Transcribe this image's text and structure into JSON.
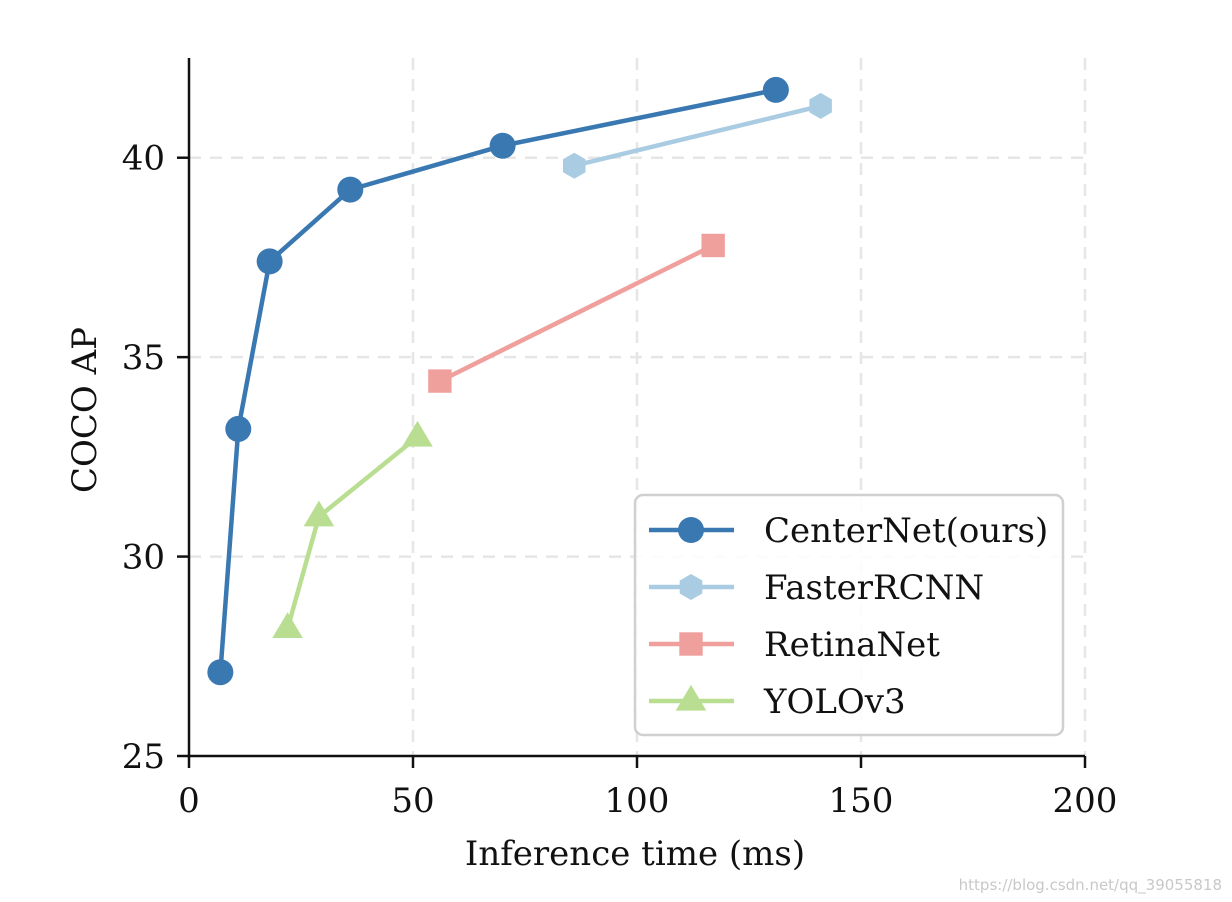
{
  "chart_data": {
    "type": "line",
    "title": "",
    "xlabel": "Inference time (ms)",
    "ylabel": "COCO AP",
    "xlim": [
      0,
      200
    ],
    "ylim": [
      25,
      42.5
    ],
    "xticks": [
      0,
      50,
      100,
      150,
      200
    ],
    "yticks": [
      25,
      30,
      35,
      40
    ],
    "grid": true,
    "legend_position": "lower-right",
    "series": [
      {
        "name": "CenterNet(ours)",
        "color": "#3a78b1",
        "marker": "circle",
        "x": [
          7,
          11,
          18,
          36,
          70,
          131
        ],
        "y": [
          27.1,
          33.2,
          37.4,
          39.2,
          40.3,
          41.7
        ]
      },
      {
        "name": "FasterRCNN",
        "color": "#a9cce2",
        "marker": "hexagon",
        "x": [
          86,
          141
        ],
        "y": [
          39.8,
          41.3
        ]
      },
      {
        "name": "RetinaNet",
        "color": "#f0a09c",
        "marker": "square",
        "x": [
          56,
          117
        ],
        "y": [
          34.4,
          37.8
        ]
      },
      {
        "name": "YOLOv3",
        "color": "#b9de91",
        "marker": "triangle",
        "x": [
          22,
          29,
          51
        ],
        "y": [
          28.2,
          31.0,
          33.0
        ]
      }
    ]
  },
  "watermark": "https://blog.csdn.net/qq_39055818"
}
